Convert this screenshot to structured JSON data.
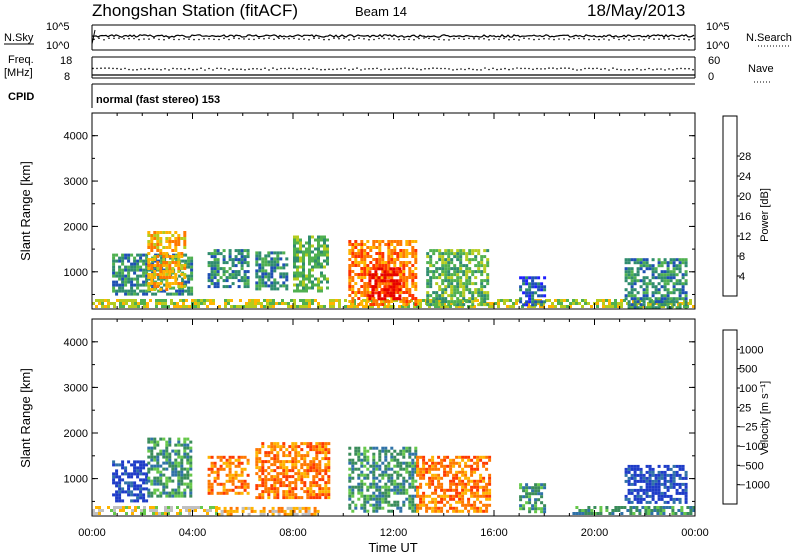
{
  "header": {
    "title": "Zhongshan Station (fitACF)",
    "beam": "Beam 14",
    "date": "18/May/2013"
  },
  "top_panels": {
    "nsky_label": "N.Sky",
    "nsearch_label": "N.Search",
    "nsky_ticks": [
      "10^5",
      "10^0"
    ],
    "nsearch_ticks": [
      "10^5",
      "10^0"
    ],
    "freq_label": "Freq.",
    "freq_unit": "[MHz]",
    "freq_ticks": [
      "18",
      "8"
    ],
    "nave_label": "Nave",
    "nave_ticks": [
      "60",
      "0"
    ],
    "cpid_label": "CPID",
    "cpid_value": "normal (fast stereo) 153"
  },
  "chart_data": [
    {
      "type": "heatmap",
      "name": "power",
      "ylabel": "Slant Range [km]",
      "y_ticks": [
        "1000",
        "2000",
        "3000",
        "4000"
      ],
      "ylim": [
        180,
        4500
      ],
      "x_ticks": [
        "00:00",
        "04:00",
        "08:00",
        "12:00",
        "16:00",
        "20:00",
        "00:00"
      ],
      "colorbar": {
        "label": "Power [dB]",
        "ticks": [
          "4",
          "8",
          "12",
          "16",
          "20",
          "24",
          "28"
        ],
        "colors": [
          "#1e1eff",
          "#1e50b4",
          "#2f8c6e",
          "#4fb04f",
          "#b4cc1e",
          "#ffb400",
          "#ff7800",
          "#ff3200",
          "#e60000"
        ]
      },
      "regions": [
        {
          "t0": 0.0,
          "t1": 24.0,
          "r0": 220,
          "r1": 400,
          "level": 4
        },
        {
          "t0": 0.8,
          "t1": 4.0,
          "r0": 500,
          "r1": 1400,
          "level": 2
        },
        {
          "t0": 2.2,
          "t1": 3.7,
          "r0": 600,
          "r1": 1900,
          "level": 5
        },
        {
          "t0": 4.6,
          "t1": 6.2,
          "r0": 700,
          "r1": 1500,
          "level": 2
        },
        {
          "t0": 6.5,
          "t1": 7.8,
          "r0": 600,
          "r1": 1450,
          "level": 2
        },
        {
          "t0": 8.0,
          "t1": 9.4,
          "r0": 600,
          "r1": 1800,
          "level": 3
        },
        {
          "t0": 10.2,
          "t1": 12.9,
          "r0": 300,
          "r1": 1700,
          "level": 6
        },
        {
          "t0": 11.0,
          "t1": 12.2,
          "r0": 400,
          "r1": 1100,
          "level": 8
        },
        {
          "t0": 13.3,
          "t1": 15.8,
          "r0": 300,
          "r1": 1500,
          "level": 3
        },
        {
          "t0": 17.0,
          "t1": 18.0,
          "r0": 300,
          "r1": 900,
          "level": 1
        },
        {
          "t0": 21.2,
          "t1": 23.6,
          "r0": 200,
          "r1": 1300,
          "level": 2
        }
      ]
    },
    {
      "type": "heatmap",
      "name": "velocity",
      "ylabel": "Slant Range [km]",
      "y_ticks": [
        "1000",
        "2000",
        "3000",
        "4000"
      ],
      "ylim": [
        180,
        4500
      ],
      "x_ticks": [
        "00:00",
        "04:00",
        "08:00",
        "12:00",
        "16:00",
        "20:00",
        "00:00"
      ],
      "xlabel": "Time UT",
      "colorbar": {
        "label": "Velocity [m s⁻¹]",
        "ticks": [
          "1000",
          "500",
          "100",
          "25",
          "−25",
          "−100",
          "−500",
          "−1000"
        ],
        "colors": [
          "#1e3cc8",
          "#2f72a8",
          "#3a8c5a",
          "#66c84a",
          "#c0c0c0",
          "#ffb400",
          "#ff7800",
          "#ff3a00",
          "#e60000"
        ]
      },
      "regions": [
        {
          "t0": 0.0,
          "t1": 5.0,
          "r0": 220,
          "r1": 400,
          "level": 4
        },
        {
          "t0": 5.0,
          "t1": 9.0,
          "r0": 220,
          "r1": 380,
          "level": 5
        },
        {
          "t0": 0.8,
          "t1": 2.2,
          "r0": 500,
          "r1": 1400,
          "level": 0
        },
        {
          "t0": 2.2,
          "t1": 3.9,
          "r0": 600,
          "r1": 1900,
          "level": 2
        },
        {
          "t0": 4.6,
          "t1": 6.2,
          "r0": 700,
          "r1": 1500,
          "level": 6
        },
        {
          "t0": 6.5,
          "t1": 9.4,
          "r0": 600,
          "r1": 1800,
          "level": 6
        },
        {
          "t0": 10.2,
          "t1": 12.9,
          "r0": 300,
          "r1": 1700,
          "level": 2
        },
        {
          "t0": 12.9,
          "t1": 15.8,
          "r0": 300,
          "r1": 1500,
          "level": 6
        },
        {
          "t0": 17.0,
          "t1": 18.0,
          "r0": 300,
          "r1": 900,
          "level": 2
        },
        {
          "t0": 19.0,
          "t1": 24.0,
          "r0": 220,
          "r1": 400,
          "level": 2
        },
        {
          "t0": 21.2,
          "t1": 23.6,
          "r0": 500,
          "r1": 1300,
          "level": 0
        }
      ]
    }
  ]
}
